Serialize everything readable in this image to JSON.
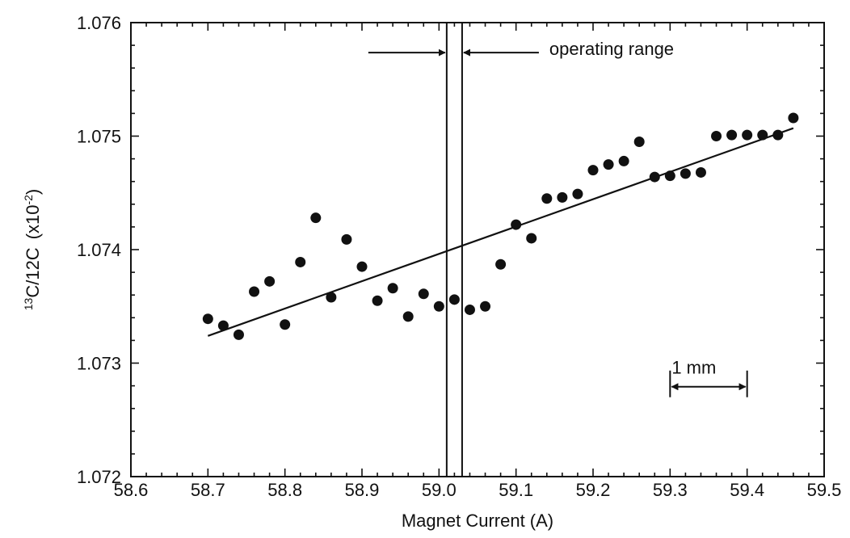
{
  "chart_data": {
    "type": "scatter",
    "xlabel": "Magnet Current (A)",
    "ylabel": "13C/12C  (x10-2)",
    "ylabel_parts": {
      "sup": "13",
      "main": "C/12C",
      "unit": "(x10",
      "exp": "-2",
      "close": ")"
    },
    "xlim": [
      58.6,
      59.5
    ],
    "ylim": [
      1.072,
      1.076
    ],
    "x_ticks": [
      "58.6",
      "58.7",
      "58.8",
      "58.9",
      "59.0",
      "59.1",
      "59.2",
      "59.3",
      "59.4",
      "59.5"
    ],
    "y_ticks": [
      "1.072",
      "1.073",
      "1.074",
      "1.075",
      "1.076"
    ],
    "grid": false,
    "series": [
      {
        "points": [
          [
            58.7,
            1.07339
          ],
          [
            58.72,
            1.07333
          ],
          [
            58.74,
            1.07325
          ],
          [
            58.76,
            1.07363
          ],
          [
            58.78,
            1.07372
          ],
          [
            58.8,
            1.07334
          ],
          [
            58.82,
            1.07389
          ],
          [
            58.84,
            1.07428
          ],
          [
            58.86,
            1.07358
          ],
          [
            58.88,
            1.07409
          ],
          [
            58.9,
            1.07385
          ],
          [
            58.92,
            1.07355
          ],
          [
            58.94,
            1.07366
          ],
          [
            58.96,
            1.07341
          ],
          [
            58.98,
            1.07361
          ],
          [
            59.0,
            1.0735
          ],
          [
            59.02,
            1.07356
          ],
          [
            59.04,
            1.07347
          ],
          [
            59.06,
            1.0735
          ],
          [
            59.08,
            1.07387
          ],
          [
            59.1,
            1.07422
          ],
          [
            59.12,
            1.0741
          ],
          [
            59.14,
            1.07445
          ],
          [
            59.16,
            1.07446
          ],
          [
            59.18,
            1.07449
          ],
          [
            59.2,
            1.0747
          ],
          [
            59.22,
            1.07475
          ],
          [
            59.24,
            1.07478
          ],
          [
            59.26,
            1.07495
          ],
          [
            59.28,
            1.07464
          ],
          [
            59.3,
            1.07465
          ],
          [
            59.32,
            1.07467
          ],
          [
            59.34,
            1.07468
          ],
          [
            59.36,
            1.075
          ],
          [
            59.38,
            1.07501
          ],
          [
            59.4,
            1.07501
          ],
          [
            59.42,
            1.07501
          ],
          [
            59.44,
            1.07501
          ],
          [
            59.46,
            1.07516
          ]
        ]
      }
    ],
    "fit_line": {
      "x": [
        58.7,
        59.46
      ],
      "y": [
        1.07324,
        1.07507
      ]
    },
    "operating_range": {
      "x": [
        59.01,
        59.03
      ],
      "label": "operating range"
    },
    "scale_bar": {
      "x": [
        59.3,
        59.4
      ],
      "label": "1 mm"
    }
  }
}
